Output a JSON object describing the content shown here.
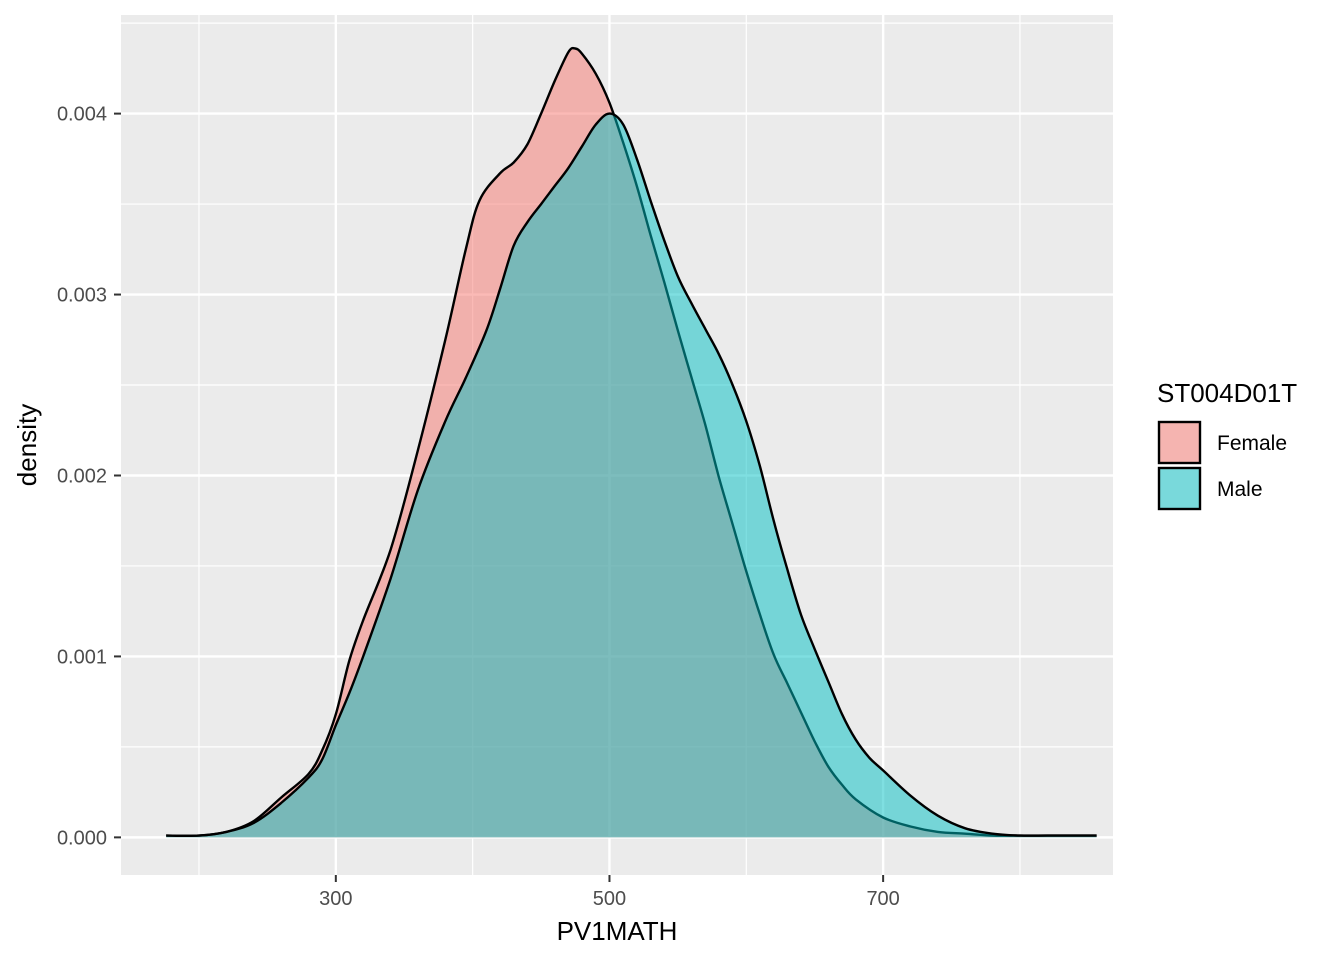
{
  "chart_data": {
    "type": "area",
    "xlabel": "PV1MATH",
    "ylabel": "density",
    "xlim": [
      143,
      868
    ],
    "ylim": [
      -0.000208,
      0.004545
    ],
    "x_ticks": [
      300,
      500,
      700
    ],
    "x_tick_labels": [
      "300",
      "500",
      "700"
    ],
    "y_ticks": [
      0.0,
      0.001,
      0.002,
      0.003,
      0.004
    ],
    "y_tick_labels": [
      "0.000",
      "0.001",
      "0.002",
      "0.003",
      "0.004"
    ],
    "grid": true,
    "legend": {
      "title": "ST004D01T",
      "position": "right"
    },
    "series": [
      {
        "name": "Female",
        "color": "#F8766D",
        "points": [
          [
            176,
            1e-05
          ],
          [
            200,
            1e-05
          ],
          [
            220,
            3e-05
          ],
          [
            240,
            9e-05
          ],
          [
            260,
            0.00022
          ],
          [
            280,
            0.00035
          ],
          [
            290,
            0.00048
          ],
          [
            300,
            0.00068
          ],
          [
            310,
            0.00098
          ],
          [
            320,
            0.0012
          ],
          [
            340,
            0.00159
          ],
          [
            360,
            0.00214
          ],
          [
            380,
            0.00275
          ],
          [
            395,
            0.00325
          ],
          [
            405,
            0.00352
          ],
          [
            420,
            0.00367
          ],
          [
            430,
            0.00373
          ],
          [
            440,
            0.00383
          ],
          [
            450,
            0.004
          ],
          [
            460,
            0.00418
          ],
          [
            470,
            0.00434
          ],
          [
            475,
            0.00436
          ],
          [
            480,
            0.00433
          ],
          [
            490,
            0.00422
          ],
          [
            500,
            0.00406
          ],
          [
            510,
            0.00384
          ],
          [
            520,
            0.0036
          ],
          [
            530,
            0.00333
          ],
          [
            540,
            0.00307
          ],
          [
            550,
            0.0028
          ],
          [
            560,
            0.00254
          ],
          [
            570,
            0.00228
          ],
          [
            580,
            0.00199
          ],
          [
            590,
            0.00173
          ],
          [
            600,
            0.00147
          ],
          [
            610,
            0.00123
          ],
          [
            620,
            0.00101
          ],
          [
            630,
            0.00085
          ],
          [
            640,
            0.00069
          ],
          [
            650,
            0.00053
          ],
          [
            660,
            0.00039
          ],
          [
            670,
            0.00029
          ],
          [
            680,
            0.00021
          ],
          [
            700,
            0.00011
          ],
          [
            720,
            6e-05
          ],
          [
            740,
            3e-05
          ],
          [
            760,
            2e-05
          ],
          [
            780,
            1e-05
          ],
          [
            800,
            1e-05
          ],
          [
            820,
            1e-05
          ],
          [
            840,
            1e-05
          ],
          [
            856,
            1e-05
          ]
        ]
      },
      {
        "name": "Male",
        "color": "#00BFC4",
        "points": [
          [
            176,
            1e-05
          ],
          [
            200,
            1e-05
          ],
          [
            220,
            3e-05
          ],
          [
            240,
            8e-05
          ],
          [
            260,
            0.00019
          ],
          [
            280,
            0.00033
          ],
          [
            290,
            0.00043
          ],
          [
            300,
            0.00062
          ],
          [
            310,
            0.0008
          ],
          [
            320,
            0.001
          ],
          [
            340,
            0.00143
          ],
          [
            360,
            0.00192
          ],
          [
            380,
            0.0023
          ],
          [
            395,
            0.00254
          ],
          [
            410,
            0.0028
          ],
          [
            420,
            0.00303
          ],
          [
            430,
            0.00327
          ],
          [
            440,
            0.0034
          ],
          [
            450,
            0.0035
          ],
          [
            460,
            0.0036
          ],
          [
            470,
            0.0037
          ],
          [
            480,
            0.00382
          ],
          [
            490,
            0.00394
          ],
          [
            500,
            0.004
          ],
          [
            510,
            0.00394
          ],
          [
            520,
            0.00375
          ],
          [
            530,
            0.00352
          ],
          [
            540,
            0.0033
          ],
          [
            550,
            0.0031
          ],
          [
            560,
            0.00295
          ],
          [
            570,
            0.00281
          ],
          [
            580,
            0.00267
          ],
          [
            590,
            0.0025
          ],
          [
            600,
            0.0023
          ],
          [
            610,
            0.00205
          ],
          [
            620,
            0.00175
          ],
          [
            630,
            0.00148
          ],
          [
            640,
            0.00123
          ],
          [
            650,
            0.00104
          ],
          [
            660,
            0.00086
          ],
          [
            670,
            0.00068
          ],
          [
            680,
            0.00054
          ],
          [
            690,
            0.00044
          ],
          [
            700,
            0.00037
          ],
          [
            720,
            0.00023
          ],
          [
            740,
            0.00012
          ],
          [
            760,
            5e-05
          ],
          [
            780,
            2e-05
          ],
          [
            800,
            1e-05
          ],
          [
            820,
            1e-05
          ],
          [
            840,
            1e-05
          ],
          [
            856,
            1e-05
          ]
        ]
      }
    ]
  }
}
